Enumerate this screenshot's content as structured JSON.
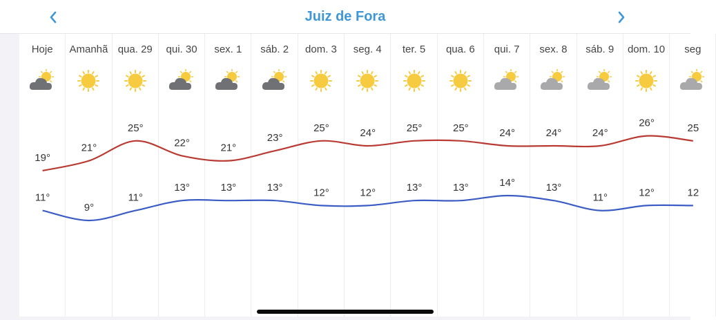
{
  "header": {
    "title": "Juiz de Fora",
    "prev_icon": "chevron-left-icon",
    "next_icon": "chevron-right-icon",
    "accent_color": "#3f97d8"
  },
  "days": [
    {
      "label": "Hoje",
      "icon": "partly-cloudy-dark-icon",
      "high": "19°",
      "low": "11°"
    },
    {
      "label": "Amanhã",
      "icon": "sun-icon",
      "high": "21°",
      "low": "9°"
    },
    {
      "label": "qua. 29",
      "icon": "sun-icon",
      "high": "25°",
      "low": "11°"
    },
    {
      "label": "qui. 30",
      "icon": "partly-cloudy-dark-icon",
      "high": "22°",
      "low": "13°"
    },
    {
      "label": "sex. 1",
      "icon": "partly-cloudy-dark-icon",
      "high": "21°",
      "low": "13°"
    },
    {
      "label": "sáb. 2",
      "icon": "partly-cloudy-dark-icon",
      "high": "23°",
      "low": "13°"
    },
    {
      "label": "dom. 3",
      "icon": "sun-icon",
      "high": "25°",
      "low": "12°"
    },
    {
      "label": "seg. 4",
      "icon": "sun-icon",
      "high": "24°",
      "low": "12°"
    },
    {
      "label": "ter. 5",
      "icon": "sun-icon",
      "high": "25°",
      "low": "13°"
    },
    {
      "label": "qua. 6",
      "icon": "sun-icon",
      "high": "25°",
      "low": "13°"
    },
    {
      "label": "qui. 7",
      "icon": "partly-cloudy-light-icon",
      "high": "24°",
      "low": "14°"
    },
    {
      "label": "sex. 8",
      "icon": "partly-cloudy-light-icon",
      "high": "24°",
      "low": "13°"
    },
    {
      "label": "sáb. 9",
      "icon": "partly-cloudy-light-icon",
      "high": "24°",
      "low": "11°"
    },
    {
      "label": "dom. 10",
      "icon": "sun-icon",
      "high": "26°",
      "low": "12°"
    },
    {
      "label": "seg",
      "icon": "partly-cloudy-light-icon",
      "high": "25",
      "low": "12"
    }
  ],
  "series_colors": {
    "high": "#b83a32",
    "low": "#3a5cc4"
  }
}
